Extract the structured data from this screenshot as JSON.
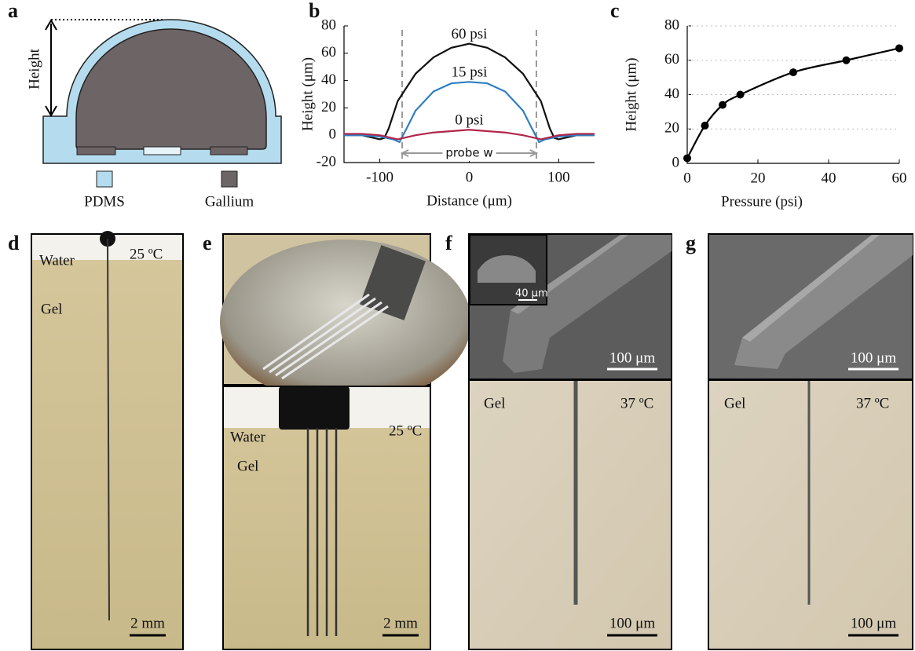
{
  "panel_labels": [
    "a",
    "b",
    "c",
    "d",
    "e",
    "f",
    "g"
  ],
  "diagram": {
    "height_label": "Height",
    "legend": [
      {
        "name": "PDMS",
        "color": "#b5dcee"
      },
      {
        "name": "Gallium",
        "color": "#6d6466"
      }
    ]
  },
  "chart_data": [
    {
      "type": "line",
      "x_label": "Distance (μm)",
      "y_label": "Height (μm)",
      "xlim": [
        -140,
        140
      ],
      "ylim": [
        -20,
        80
      ],
      "xticks": [
        -100,
        0,
        100
      ],
      "yticks": [
        -20,
        0,
        20,
        40,
        60,
        80
      ],
      "annotation": "probe w",
      "probe_edges": [
        -75,
        75
      ],
      "series": [
        {
          "name": "60 psi",
          "color": "#111111",
          "x": [
            -140,
            -120,
            -100,
            -95,
            -90,
            -80,
            -60,
            -40,
            -20,
            0,
            20,
            40,
            60,
            80,
            90,
            95,
            100,
            120,
            140
          ],
          "values": [
            0,
            0,
            -3,
            -2,
            5,
            25,
            45,
            57,
            64,
            67,
            64,
            57,
            45,
            25,
            5,
            -2,
            -3,
            0,
            0
          ]
        },
        {
          "name": "15 psi",
          "color": "#2f7fc1",
          "x": [
            -140,
            -120,
            -100,
            -85,
            -78,
            -70,
            -60,
            -40,
            -20,
            0,
            20,
            40,
            60,
            70,
            78,
            85,
            100,
            120,
            140
          ],
          "values": [
            0,
            0,
            -1,
            -3,
            -5,
            5,
            18,
            32,
            38,
            39,
            38,
            32,
            18,
            5,
            -5,
            -3,
            -1,
            0,
            0
          ]
        },
        {
          "name": "0 psi",
          "color": "#b0254a",
          "x": [
            -140,
            -120,
            -100,
            -80,
            -60,
            -40,
            -20,
            0,
            20,
            40,
            60,
            80,
            100,
            120,
            140
          ],
          "values": [
            1,
            1,
            0,
            -3,
            0,
            2,
            3,
            4,
            3,
            2,
            0,
            -3,
            0,
            1,
            1
          ]
        }
      ]
    },
    {
      "type": "line",
      "x_label": "Pressure (psi)",
      "y_label": "Height (μm)",
      "xlim": [
        0,
        60
      ],
      "ylim": [
        0,
        80
      ],
      "xticks": [
        0,
        20,
        40,
        60
      ],
      "yticks": [
        0,
        20,
        40,
        60,
        80
      ],
      "grid": true,
      "series": [
        {
          "color": "#000000",
          "x": [
            0,
            5,
            10,
            15,
            30,
            45,
            60
          ],
          "values": [
            3,
            22,
            34,
            40,
            53,
            60,
            67
          ]
        }
      ]
    }
  ],
  "photos": {
    "d": {
      "medium_top": "Water",
      "temperature": "25 ºC",
      "medium": "Gel",
      "scale_bar": "2 mm"
    },
    "e": {
      "medium_top": "Water",
      "temperature": "25 ºC",
      "medium": "Gel",
      "scale_bar": "2 mm"
    },
    "f": {
      "inset_scale_bar": "40 μm",
      "sem_scale_bar": "100 μm",
      "medium": "Gel",
      "temperature": "37 ºC",
      "scale_bar": "100 μm"
    },
    "g": {
      "sem_scale_bar": "100 μm",
      "medium": "Gel",
      "temperature": "37 ºC",
      "scale_bar": "100 μm"
    }
  }
}
